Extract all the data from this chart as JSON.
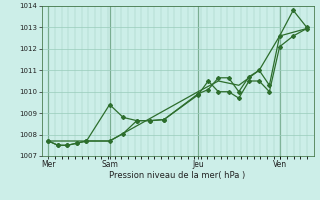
{
  "xlabel": "Pression niveau de la mer( hPa )",
  "background_color": "#cceee8",
  "grid_color": "#99ccbb",
  "line_color": "#2d6e2d",
  "ylim": [
    1007,
    1014
  ],
  "yticks": [
    1007,
    1008,
    1009,
    1010,
    1011,
    1012,
    1013,
    1014
  ],
  "xtick_labels": [
    "Mer",
    "Sam",
    "Jeu",
    "Ven"
  ],
  "xtick_positions": [
    0,
    4.5,
    11,
    17
  ],
  "vline_positions": [
    0,
    4.5,
    11,
    17
  ],
  "line1_x": [
    0,
    0.7,
    1.4,
    2.1,
    2.8,
    4.5,
    5.5,
    6.5,
    7.5,
    8.5,
    11.0,
    11.75,
    12.5,
    13.25,
    14.0,
    14.75,
    15.5,
    16.25,
    17.0,
    18.0,
    19.0
  ],
  "line1_y": [
    1007.7,
    1007.5,
    1007.5,
    1007.6,
    1007.7,
    1009.4,
    1008.8,
    1008.65,
    1008.65,
    1008.7,
    1009.9,
    1010.1,
    1010.65,
    1010.65,
    1010.0,
    1010.7,
    1011.0,
    1010.3,
    1012.6,
    1013.8,
    1013.0
  ],
  "line2_x": [
    0,
    0.7,
    1.4,
    2.1,
    2.8,
    4.5,
    5.5,
    6.5,
    7.5,
    8.5,
    11.0,
    11.75,
    12.5,
    13.25,
    14.0,
    14.75,
    15.5,
    16.25,
    17.0,
    18.0,
    19.0
  ],
  "line2_y": [
    1007.7,
    1007.5,
    1007.5,
    1007.6,
    1007.7,
    1007.7,
    1008.05,
    1008.65,
    1008.65,
    1008.7,
    1009.85,
    1010.5,
    1010.0,
    1010.0,
    1009.7,
    1010.5,
    1010.5,
    1010.0,
    1012.1,
    1012.6,
    1012.95
  ],
  "line3_x": [
    0,
    4.5,
    11.0,
    12.5,
    14.0,
    15.5,
    17.0,
    19.0
  ],
  "line3_y": [
    1007.7,
    1007.7,
    1010.0,
    1010.5,
    1010.3,
    1011.0,
    1012.6,
    1012.95
  ],
  "xlim": [
    -0.5,
    19.5
  ],
  "figsize": [
    3.2,
    2.0
  ],
  "dpi": 100
}
